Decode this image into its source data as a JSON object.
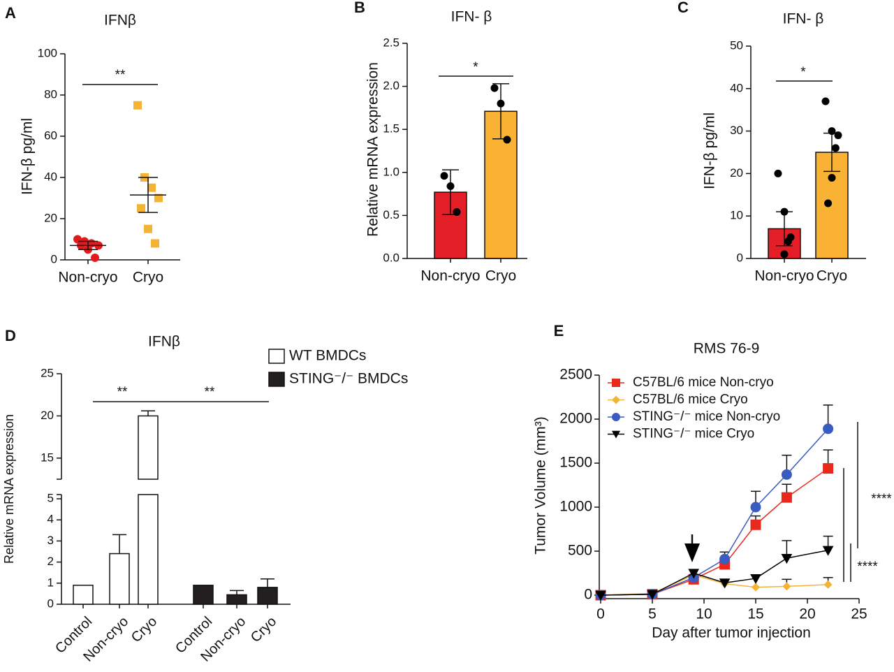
{
  "chart_data": [
    {
      "type": "dot",
      "label": "A",
      "title": "IFNβ",
      "ylabel": "IFN-β pg/ml",
      "categories": [
        "Non-cryo",
        "Cryo"
      ],
      "points": [
        [
          10,
          9,
          8,
          7,
          7,
          5,
          1
        ],
        [
          75,
          40,
          35,
          30,
          25,
          15,
          8
        ]
      ],
      "means": [
        7,
        31.5
      ],
      "errors": [
        2,
        8.5
      ],
      "colors": [
        "#e31a1c",
        "#f5b335"
      ],
      "markers": [
        "circle",
        "square"
      ],
      "ylim": [
        0,
        100
      ],
      "yticks": [
        0,
        20,
        40,
        60,
        80,
        100
      ],
      "annotations": [
        "**"
      ]
    },
    {
      "type": "bar",
      "label": "B",
      "title": "IFN- β",
      "ylabel": "Relative mRNA expression",
      "categories": [
        "Non-cryo",
        "Cryo"
      ],
      "values": [
        0.77,
        1.71
      ],
      "errors": [
        0.26,
        0.32
      ],
      "points": [
        [
          0.96,
          0.84,
          0.54
        ],
        [
          1.98,
          1.8,
          1.38
        ]
      ],
      "colors": [
        "#e41e26",
        "#f9b233"
      ],
      "ylim": [
        0,
        2.5
      ],
      "yticks": [
        {
          "value": 0,
          "label": "0.0"
        },
        0.5,
        {
          "value": 1,
          "label": "1.0"
        },
        1.5,
        {
          "value": 2,
          "label": "2.0"
        },
        2.5
      ],
      "annotations": [
        "*"
      ]
    },
    {
      "type": "bar",
      "label": "C",
      "title": "IFN- β",
      "ylabel": "IFN-β pg/ml",
      "categories": [
        "Non-cryo",
        "Cryo"
      ],
      "values": [
        7,
        25
      ],
      "errors": [
        4,
        4.5
      ],
      "points": [
        [
          20,
          11,
          5,
          4,
          1
        ],
        [
          37,
          30,
          29,
          26,
          19,
          13
        ]
      ],
      "colors": [
        "#e41e26",
        "#f9b233"
      ],
      "ylim": [
        0,
        50
      ],
      "yticks": [
        0,
        10,
        20,
        30,
        40,
        50
      ],
      "annotations": [
        "*"
      ]
    },
    {
      "type": "grouped_bar",
      "label": "D",
      "title": "IFNβ",
      "ylabel": "Relative mRNA expression",
      "categories": [
        "Control",
        "Non-cryo",
        "Cryo"
      ],
      "series": [
        {
          "name": "WT BMDCs",
          "color": "#ffffff",
          "values": [
            0.9,
            2.4,
            20
          ],
          "errors": [
            0,
            0.9,
            0.6
          ]
        },
        {
          "name": "STING⁻/⁻ BMDCs",
          "color": "#231f20",
          "values": [
            0.9,
            0.45,
            0.8
          ],
          "errors": [
            0,
            0.2,
            0.4
          ]
        }
      ],
      "ylim": [
        0,
        25
      ],
      "ybreak": [
        5.2,
        12.5
      ],
      "yticks": [
        0,
        1,
        2,
        3,
        4,
        5,
        15,
        20,
        25
      ],
      "annotations": [
        "**",
        "**"
      ]
    },
    {
      "type": "line",
      "label": "E",
      "title": "RMS 76-9",
      "xlabel": "Day after tumor injection",
      "ylabel": "Tumor Volume (mm³)",
      "x": [
        0,
        5,
        9,
        12,
        15,
        18,
        22
      ],
      "series": [
        {
          "name": "C57BL/6 mice Non-cryo",
          "color": "#e8291c",
          "marker": "square",
          "values": [
            0,
            10,
            180,
            350,
            800,
            1110,
            1440
          ],
          "errors": [
            0,
            0,
            0,
            0,
            100,
            150,
            210
          ]
        },
        {
          "name": "C57BL/6 mice Cryo",
          "color": "#f5b335",
          "marker": "diamond",
          "values": [
            0,
            20,
            230,
            130,
            90,
            100,
            120
          ],
          "errors": [
            0,
            0,
            0,
            0,
            0,
            80,
            80
          ]
        },
        {
          "name": "STING⁻/⁻ mice Non-cryo",
          "color": "#3a5bbf",
          "marker": "circle",
          "values": [
            0,
            10,
            200,
            410,
            1000,
            1370,
            1890
          ],
          "errors": [
            0,
            0,
            0,
            80,
            180,
            220,
            270
          ]
        },
        {
          "name": "STING⁻/⁻ mice Cryo",
          "color": "#000000",
          "marker": "triangle-down",
          "values": [
            0,
            10,
            250,
            140,
            190,
            420,
            510
          ],
          "errors": [
            0,
            0,
            0,
            0,
            0,
            200,
            160
          ]
        }
      ],
      "xlim": [
        0,
        25
      ],
      "xticks": [
        0,
        5,
        10,
        15,
        20,
        25
      ],
      "ylim": [
        0,
        2500
      ],
      "yticks": [
        0,
        500,
        1000,
        1500,
        2000,
        2500
      ],
      "annotations": [
        "****",
        "****"
      ]
    }
  ]
}
